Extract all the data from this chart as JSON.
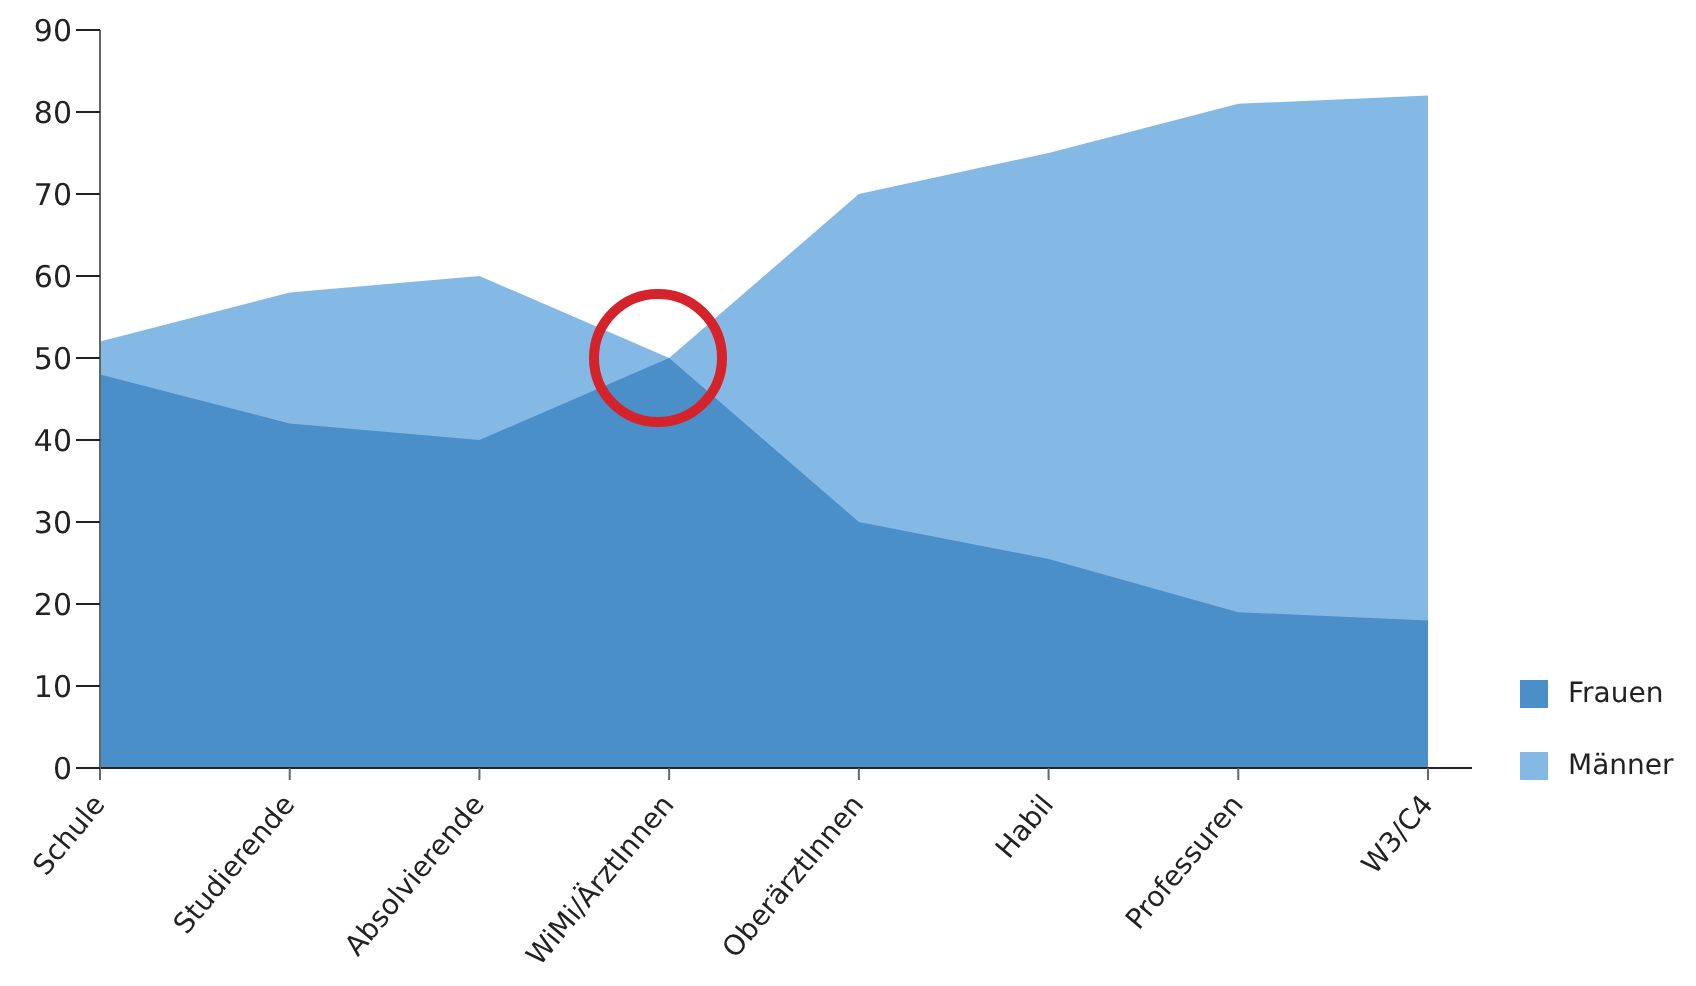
{
  "chart_data": {
    "type": "area",
    "categories": [
      "Schule",
      "Studierende",
      "Absolvierende",
      "WiMi/ÄrztInnen",
      "OberärztInnen",
      "Habil",
      "Professuren",
      "W3/C4"
    ],
    "series": [
      {
        "name": "Frauen",
        "color": "#4a8fc7",
        "values": [
          48,
          42,
          40,
          50,
          30,
          25.5,
          19,
          18
        ]
      },
      {
        "name": "Männer",
        "color": "#85b9e5",
        "values": [
          52,
          58,
          60,
          50,
          70,
          75,
          81,
          82
        ]
      }
    ],
    "ylim": [
      0,
      90
    ],
    "yticks": [
      0,
      10,
      20,
      30,
      40,
      50,
      60,
      70,
      80,
      90
    ],
    "legend": "bottom right"
  }
}
